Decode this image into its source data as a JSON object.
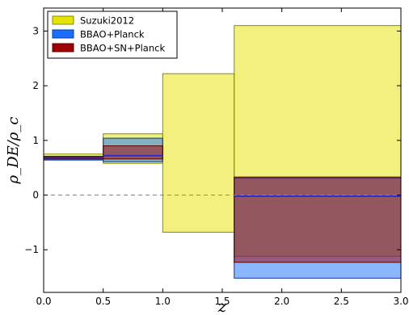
{
  "chart_data": {
    "type": "area",
    "xlabel": "z",
    "ylabel": "ρ_DE/ρ_c",
    "xlim": [
      0.0,
      3.0
    ],
    "ylim": [
      -1.78,
      3.42
    ],
    "xticks": [
      "0.0",
      "0.5",
      "1.0",
      "1.5",
      "2.0",
      "2.5",
      "3.0"
    ],
    "yticks": [
      "3",
      "2",
      "1",
      "0",
      "−1"
    ],
    "ytick_values": [
      3,
      2,
      1,
      0,
      -1
    ],
    "reference_line": {
      "y": 0,
      "style": "dashed",
      "color": "#888888"
    },
    "grid": false,
    "legend_position": "top-left",
    "series": [
      {
        "name": "Suzuki2012",
        "fill": "#e5e300",
        "edge": "#8a8a00",
        "bins": [
          {
            "x0": 0.0,
            "x1": 0.5,
            "low": 0.65,
            "high": 0.75
          },
          {
            "x0": 0.5,
            "x1": 1.0,
            "low": 0.58,
            "high": 1.12
          },
          {
            "x0": 1.0,
            "x1": 1.6,
            "low": -0.68,
            "high": 2.22
          },
          {
            "x0": 1.6,
            "x1": 3.0,
            "low": -1.12,
            "high": 3.1
          }
        ]
      },
      {
        "name": "BBAO+Planck",
        "fill": "#1a6dff",
        "edge": "#0a3d99",
        "bins": [
          {
            "x0": 0.0,
            "x1": 0.5,
            "low": 0.64,
            "high": 0.71
          },
          {
            "x0": 0.5,
            "x1": 1.0,
            "low": 0.61,
            "high": 1.04
          },
          {
            "x0": 1.6,
            "x1": 3.0,
            "low": -1.52,
            "high": 0.31
          }
        ]
      },
      {
        "name": "BBAO+SN+Planck",
        "fill": "#a00000",
        "edge": "#550000",
        "bins": [
          {
            "x0": 0.0,
            "x1": 0.5,
            "low": 0.66,
            "high": 0.7
          },
          {
            "x0": 0.5,
            "x1": 1.0,
            "low": 0.66,
            "high": 0.9
          },
          {
            "x0": 1.6,
            "x1": 3.0,
            "low": -1.23,
            "high": 0.33
          }
        ]
      }
    ],
    "bestfit": {
      "color": "#2c2ccc",
      "bins": [
        {
          "x0": 0.0,
          "x1": 0.5,
          "y": 0.68
        },
        {
          "x0": 0.5,
          "x1": 1.0,
          "y": 0.72
        },
        {
          "x0": 1.6,
          "x1": 3.0,
          "y": -0.02
        }
      ]
    }
  }
}
